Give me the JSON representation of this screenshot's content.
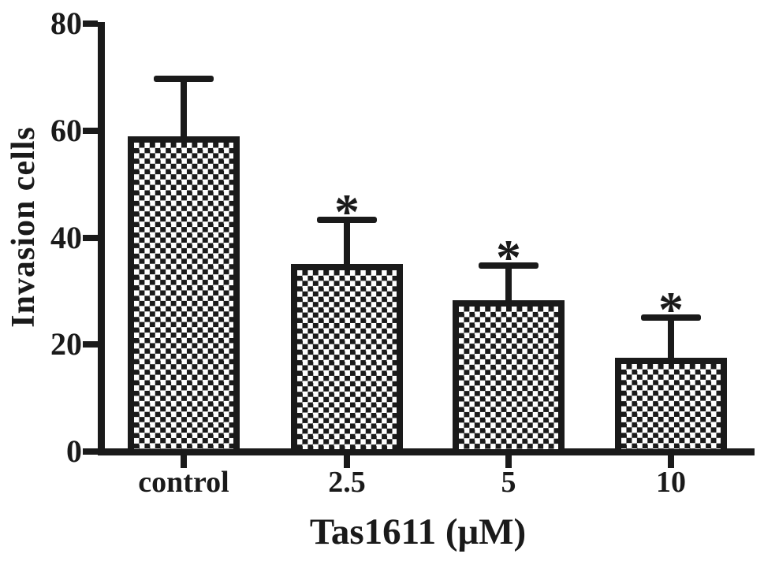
{
  "figure": {
    "background_color": "#ffffff",
    "ink_color": "#1a1a1a"
  },
  "chart_data": {
    "type": "bar",
    "title": "",
    "ylabel": "Invasion cells",
    "xlabel": "Tas1611 (μM)",
    "ylim": [
      0,
      80
    ],
    "ytick_values": [
      0,
      20,
      40,
      60,
      80
    ],
    "ytick_labels": [
      "0",
      "20",
      "40",
      "60",
      "80"
    ],
    "categories": [
      "control",
      "2.5",
      "5",
      "10"
    ],
    "values": [
      59,
      35,
      28.3,
      17.6
    ],
    "errors_upper": [
      10.7,
      8.3,
      6.5,
      7.5
    ],
    "significance_markers": [
      "",
      "*",
      "*",
      "*"
    ],
    "grid": false,
    "legend_position": "none",
    "bar_fill": "black-white checkerboard pattern",
    "bar_border_color": "#1a1a1a",
    "ink_color": "#1a1a1a",
    "background_color": "#ffffff"
  }
}
